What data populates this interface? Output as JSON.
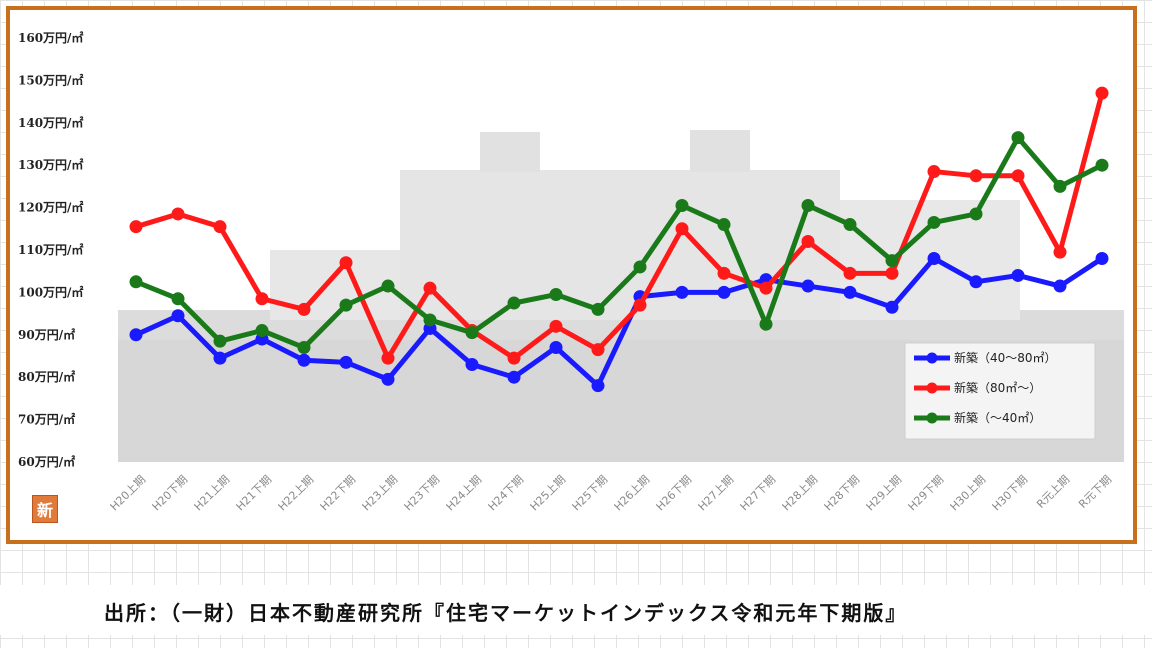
{
  "chart_data": {
    "type": "line",
    "categories": [
      "H20上期",
      "H20下期",
      "H21上期",
      "H21下期",
      "H22上期",
      "H22下期",
      "H23上期",
      "H23下期",
      "H24上期",
      "H24下期",
      "H25上期",
      "H25下期",
      "H26上期",
      "H26下期",
      "H27上期",
      "H27下期",
      "H28上期",
      "H28下期",
      "H29上期",
      "H29下期",
      "H30上期",
      "H30下期",
      "R元上期",
      "R元下期"
    ],
    "y_ticks": [
      "60万円/㎡",
      "70万円/㎡",
      "80万円/㎡",
      "90万円/㎡",
      "100万円/㎡",
      "110万円/㎡",
      "120万円/㎡",
      "130万円/㎡",
      "140万円/㎡",
      "150万円/㎡",
      "160万円/㎡"
    ],
    "ylim": [
      60,
      160
    ],
    "series": [
      {
        "name": "新築（40～80㎡）",
        "color": "#1a1aff",
        "values": [
          90,
          94.5,
          84.5,
          89,
          84,
          83.5,
          79.5,
          91.5,
          83,
          80,
          87,
          78,
          99,
          100,
          100,
          103,
          101.5,
          100,
          96.5,
          108,
          102.5,
          104,
          101.5,
          108
        ]
      },
      {
        "name": "新築（80㎡～）",
        "color": "#ff1a1a",
        "values": [
          115.5,
          118.5,
          115.5,
          98.5,
          96,
          107,
          84.5,
          101,
          91,
          84.5,
          92,
          86.5,
          97,
          115,
          104.5,
          101,
          112,
          104.5,
          104.5,
          128.5,
          127.5,
          127.5,
          109.5,
          147
        ]
      },
      {
        "name": "新築（～40㎡）",
        "color": "#1a7a1a",
        "values": [
          102.5,
          98.5,
          88.5,
          91,
          87,
          97,
          101.5,
          93.5,
          90.5,
          97.5,
          99.5,
          96,
          106,
          120.5,
          116,
          92.5,
          120.5,
          116,
          107.5,
          116.5,
          118.5,
          136.5,
          125,
          130
        ]
      }
    ],
    "legend_position": "bottom-right",
    "grid": false
  },
  "badge": "新",
  "source": "出所：（一財）日本不動産研究所『住宅マーケットインデックス令和元年下期版』"
}
